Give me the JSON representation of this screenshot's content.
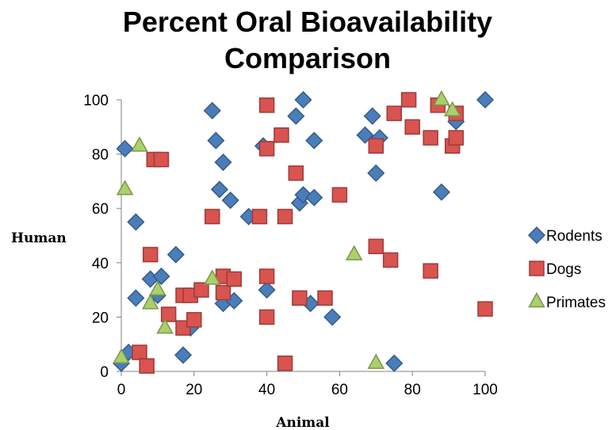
{
  "chart_data": {
    "type": "scatter",
    "title": [
      "Percent Oral Bioavailability",
      "Comparison"
    ],
    "xlabel": "Animal",
    "ylabel": "Human",
    "xlim": [
      0,
      100
    ],
    "ylim": [
      0,
      100
    ],
    "xticks": [
      "0",
      "20",
      "40",
      "60",
      "80",
      "100"
    ],
    "yticks": [
      "0",
      "20",
      "40",
      "60",
      "80",
      "100"
    ],
    "grid": false,
    "legend_position": "right",
    "series": [
      {
        "name": "Rodents",
        "marker": "diamond",
        "color": "#4a7ebb",
        "points": [
          [
            1,
            82
          ],
          [
            0,
            3
          ],
          [
            2,
            7
          ],
          [
            4,
            55
          ],
          [
            4,
            27
          ],
          [
            8,
            34
          ],
          [
            10,
            28
          ],
          [
            11,
            35
          ],
          [
            15,
            43
          ],
          [
            17,
            6
          ],
          [
            19,
            16
          ],
          [
            25,
            96
          ],
          [
            26,
            85
          ],
          [
            27,
            67
          ],
          [
            28,
            77
          ],
          [
            28,
            25
          ],
          [
            30,
            63
          ],
          [
            31,
            26
          ],
          [
            35,
            57
          ],
          [
            39,
            83
          ],
          [
            40,
            30
          ],
          [
            48,
            94
          ],
          [
            49,
            62
          ],
          [
            50,
            65
          ],
          [
            50,
            100
          ],
          [
            52,
            25
          ],
          [
            53,
            85
          ],
          [
            53,
            64
          ],
          [
            58,
            20
          ],
          [
            67,
            87
          ],
          [
            69,
            94
          ],
          [
            70,
            73
          ],
          [
            71,
            86
          ],
          [
            75,
            3
          ],
          [
            88,
            66
          ],
          [
            92,
            92
          ],
          [
            100,
            100
          ]
        ]
      },
      {
        "name": "Dogs",
        "marker": "square",
        "color": "#d9534f",
        "points": [
          [
            5,
            7
          ],
          [
            7,
            2
          ],
          [
            8,
            43
          ],
          [
            9,
            78
          ],
          [
            11,
            78
          ],
          [
            13,
            21
          ],
          [
            17,
            28
          ],
          [
            17,
            16
          ],
          [
            19,
            28
          ],
          [
            20,
            19
          ],
          [
            22,
            30
          ],
          [
            25,
            57
          ],
          [
            28,
            35
          ],
          [
            28,
            29
          ],
          [
            31,
            34
          ],
          [
            38,
            57
          ],
          [
            40,
            98
          ],
          [
            40,
            82
          ],
          [
            40,
            35
          ],
          [
            40,
            20
          ],
          [
            44,
            87
          ],
          [
            45,
            57
          ],
          [
            45,
            3
          ],
          [
            48,
            73
          ],
          [
            49,
            27
          ],
          [
            56,
            27
          ],
          [
            60,
            65
          ],
          [
            70,
            46
          ],
          [
            70,
            83
          ],
          [
            74,
            41
          ],
          [
            75,
            95
          ],
          [
            79,
            100
          ],
          [
            80,
            90
          ],
          [
            85,
            37
          ],
          [
            85,
            86
          ],
          [
            87,
            98
          ],
          [
            91,
            83
          ],
          [
            92,
            86
          ],
          [
            92,
            95
          ],
          [
            100,
            23
          ]
        ]
      },
      {
        "name": "Primates",
        "marker": "triangle",
        "color": "#a9d16a",
        "points": [
          [
            0,
            5
          ],
          [
            1,
            67
          ],
          [
            5,
            83
          ],
          [
            8,
            25
          ],
          [
            10,
            30
          ],
          [
            12,
            16
          ],
          [
            25,
            34
          ],
          [
            64,
            43
          ],
          [
            70,
            3
          ],
          [
            88,
            100
          ],
          [
            91,
            96
          ]
        ]
      }
    ]
  }
}
